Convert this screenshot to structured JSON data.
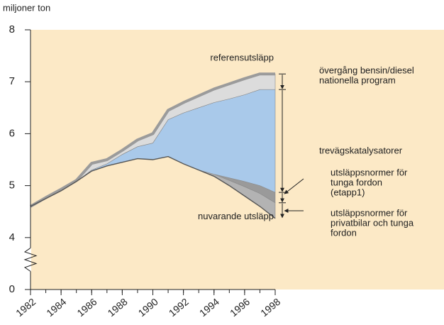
{
  "chart_data": {
    "type": "stacked_area",
    "y_label": "miljoner ton",
    "reference_label": "referensutsläpp",
    "x": [
      1982,
      1983,
      1984,
      1985,
      1986,
      1987,
      1988,
      1989,
      1990,
      1991,
      1992,
      1993,
      1994,
      1995,
      1996,
      1997,
      1998
    ],
    "xlim": [
      1982,
      1998
    ],
    "xticks": [
      1982,
      1984,
      1986,
      1988,
      1990,
      1992,
      1994,
      1996,
      1998
    ],
    "ylim": [
      0,
      8
    ],
    "ybreak": [
      0,
      4
    ],
    "yticks": [
      0,
      4,
      5,
      6,
      7,
      8
    ],
    "background": "#fce9c6",
    "series": [
      {
        "name": [
          "nuvarande utsläpp"
        ],
        "color": "#555555",
        "values": [
          4.6,
          4.75,
          4.9,
          5.08,
          5.28,
          5.38,
          5.45,
          5.52,
          5.5,
          5.56,
          5.42,
          5.3,
          5.18,
          5.0,
          4.8,
          4.6,
          4.37
        ]
      },
      {
        "name": [
          "utsläppsnormer för",
          "privatbilar och tunga",
          "fordon"
        ],
        "color": "#b3b3b3",
        "values": [
          0,
          0,
          0,
          0,
          0,
          0,
          0,
          0,
          0,
          0,
          0,
          0,
          0.04,
          0.1,
          0.18,
          0.25,
          0.3
        ]
      },
      {
        "name": [
          "utsläppsnormer för",
          "tunga fordon",
          "(etapp1)"
        ],
        "color": "#9a9a9a",
        "values": [
          0,
          0,
          0,
          0,
          0,
          0,
          0,
          0,
          0,
          0,
          0,
          0,
          0,
          0.05,
          0.1,
          0.15,
          0.2
        ]
      },
      {
        "name": [
          "trevägskatalysatorer"
        ],
        "color": "#a9c9ea",
        "values": [
          0,
          0,
          0,
          0,
          0.02,
          0.04,
          0.15,
          0.23,
          0.32,
          0.71,
          0.98,
          1.2,
          1.38,
          1.52,
          1.67,
          1.85,
          1.98
        ]
      },
      {
        "name": [
          "övergång bensin/diesel",
          "nationella program"
        ],
        "color": "#dcdcdc",
        "values": [
          0,
          0.02,
          0.03,
          0.02,
          0.13,
          0.08,
          0.08,
          0.13,
          0.18,
          0.18,
          0.2,
          0.23,
          0.26,
          0.29,
          0.31,
          0.3,
          0.3
        ]
      }
    ]
  }
}
